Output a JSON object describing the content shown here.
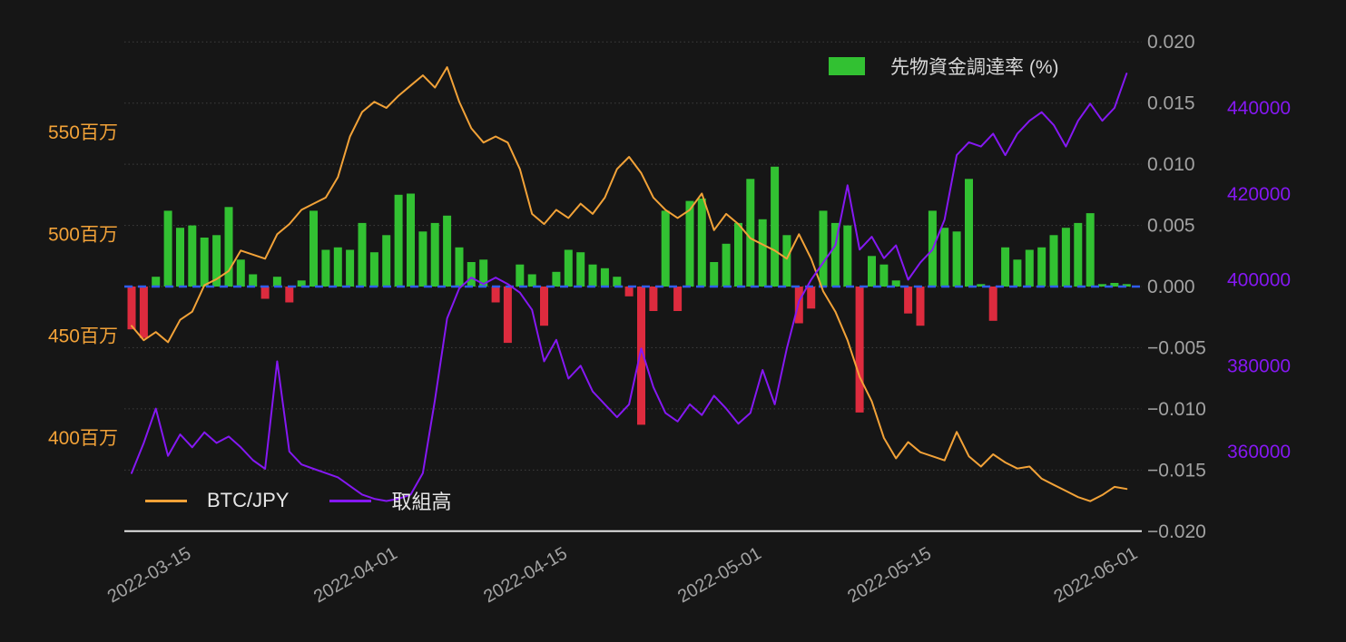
{
  "page": {
    "background": "#161616"
  },
  "chart_data": {
    "type": "mixed",
    "title": "",
    "x": [
      "2022-03-10",
      "2022-03-11",
      "2022-03-12",
      "2022-03-13",
      "2022-03-14",
      "2022-03-15",
      "2022-03-16",
      "2022-03-17",
      "2022-03-18",
      "2022-03-19",
      "2022-03-20",
      "2022-03-21",
      "2022-03-22",
      "2022-03-23",
      "2022-03-24",
      "2022-03-25",
      "2022-03-26",
      "2022-03-27",
      "2022-03-28",
      "2022-03-29",
      "2022-03-30",
      "2022-03-31",
      "2022-04-01",
      "2022-04-02",
      "2022-04-03",
      "2022-04-04",
      "2022-04-05",
      "2022-04-06",
      "2022-04-07",
      "2022-04-08",
      "2022-04-09",
      "2022-04-10",
      "2022-04-11",
      "2022-04-12",
      "2022-04-13",
      "2022-04-14",
      "2022-04-15",
      "2022-04-16",
      "2022-04-17",
      "2022-04-18",
      "2022-04-19",
      "2022-04-20",
      "2022-04-21",
      "2022-04-22",
      "2022-04-23",
      "2022-04-24",
      "2022-04-25",
      "2022-04-26",
      "2022-04-27",
      "2022-04-28",
      "2022-04-29",
      "2022-04-30",
      "2022-05-01",
      "2022-05-02",
      "2022-05-03",
      "2022-05-04",
      "2022-05-05",
      "2022-05-06",
      "2022-05-07",
      "2022-05-08",
      "2022-05-09",
      "2022-05-10",
      "2022-05-11",
      "2022-05-12",
      "2022-05-13",
      "2022-05-14",
      "2022-05-15",
      "2022-05-16",
      "2022-05-17",
      "2022-05-18",
      "2022-05-19",
      "2022-05-20",
      "2022-05-21",
      "2022-05-22",
      "2022-05-23",
      "2022-05-24",
      "2022-05-25",
      "2022-05-26",
      "2022-05-27",
      "2022-05-28",
      "2022-05-29",
      "2022-05-30",
      "2022-05-31"
    ],
    "series": [
      {
        "name": "先物資金調達率 (%)",
        "type": "bar",
        "yaxis": "funding",
        "color_positive": "#32c132",
        "color_negative": "#dd2b3e",
        "values": [
          -0.0035,
          -0.0042,
          0.0008,
          0.0062,
          0.0048,
          0.005,
          0.004,
          0.0042,
          0.0065,
          0.0022,
          0.001,
          -0.001,
          0.0008,
          -0.0013,
          0.0005,
          0.0062,
          0.003,
          0.0032,
          0.003,
          0.0052,
          0.0028,
          0.0042,
          0.0075,
          0.0076,
          0.0045,
          0.0052,
          0.0058,
          0.0032,
          0.002,
          0.0022,
          -0.0013,
          -0.0046,
          0.0018,
          0.001,
          -0.0032,
          0.0012,
          0.003,
          0.0028,
          0.0018,
          0.0015,
          0.0008,
          -0.0008,
          -0.0113,
          -0.002,
          0.0062,
          -0.002,
          0.007,
          0.0072,
          0.002,
          0.0035,
          0.0052,
          0.0088,
          0.0055,
          0.0098,
          0.0042,
          -0.003,
          -0.0018,
          0.0062,
          0.0052,
          0.005,
          -0.0103,
          0.0025,
          0.0018,
          0.0005,
          -0.0022,
          -0.0032,
          0.0062,
          0.0048,
          0.0045,
          0.0088,
          0.0002,
          -0.0028,
          0.0032,
          0.0022,
          0.003,
          0.0032,
          0.0042,
          0.0048,
          0.0052,
          0.006,
          0.0002,
          0.0003,
          0.0002
        ]
      },
      {
        "name": "BTC/JPY",
        "type": "line",
        "yaxis": "price",
        "color": "#f2a238",
        "values": [
          455,
          448,
          452,
          447,
          458,
          462,
          475,
          478,
          482,
          492,
          490,
          488,
          500,
          505,
          512,
          515,
          518,
          528,
          548,
          560,
          565,
          562,
          568,
          573,
          578,
          572,
          582,
          565,
          552,
          545,
          548,
          545,
          532,
          510,
          505,
          512,
          508,
          515,
          510,
          518,
          532,
          538,
          530,
          518,
          512,
          508,
          512,
          520,
          502,
          510,
          505,
          498,
          495,
          492,
          488,
          500,
          488,
          472,
          462,
          448,
          430,
          418,
          400,
          390,
          398,
          393,
          391,
          389,
          403,
          391,
          386,
          392,
          388,
          385,
          386,
          380,
          377,
          374,
          371,
          369,
          372,
          376,
          375
        ]
      },
      {
        "name": "取組高",
        "type": "line",
        "yaxis": "oi",
        "color": "#8518f2",
        "values": [
          355000,
          362000,
          370000,
          359000,
          364000,
          361000,
          364500,
          362000,
          363500,
          361000,
          358000,
          356000,
          381000,
          360000,
          357000,
          356000,
          355000,
          354000,
          352000,
          350000,
          349000,
          348500,
          349000,
          350000,
          355000,
          372000,
          391000,
          398000,
          400500,
          399000,
          400500,
          399000,
          397000,
          393000,
          381000,
          386000,
          377000,
          380000,
          374000,
          371000,
          368000,
          371000,
          384000,
          375000,
          369000,
          367000,
          371000,
          368500,
          373000,
          370000,
          366500,
          369000,
          379000,
          371000,
          384000,
          395000,
          400000,
          404000,
          408000,
          422000,
          407000,
          410000,
          405000,
          408000,
          400000,
          404000,
          407000,
          414000,
          429000,
          432000,
          431000,
          434000,
          429000,
          434000,
          437000,
          439000,
          436000,
          431000,
          437000,
          441000,
          437000,
          440000,
          448000
        ]
      }
    ],
    "axes": {
      "x": {
        "ticks": [
          {
            "label": "2022-03-15",
            "day_index": 5
          },
          {
            "label": "2022-04-01",
            "day_index": 22
          },
          {
            "label": "2022-04-15",
            "day_index": 36
          },
          {
            "label": "2022-05-01",
            "day_index": 52
          },
          {
            "label": "2022-05-15",
            "day_index": 66
          },
          {
            "label": "2022-06-01",
            "day_index": 83
          }
        ],
        "color": "#a3a3a3"
      },
      "price": {
        "side": "left",
        "color": "#f2a238",
        "ticks": [
          {
            "value": 550,
            "label": "550百万"
          },
          {
            "value": 500,
            "label": "500百万"
          },
          {
            "value": 450,
            "label": "450百万"
          },
          {
            "value": 400,
            "label": "400百万"
          }
        ]
      },
      "funding": {
        "side": "right",
        "color": "#a3a3a3",
        "unit": "%",
        "range": [
          -0.02,
          0.02
        ],
        "ticks": [
          0.02,
          0.015,
          0.01,
          0.005,
          0.0,
          -0.005,
          -0.01,
          -0.015,
          -0.02
        ]
      },
      "oi": {
        "side": "right-outer",
        "color": "#8518f2",
        "ticks": [
          440000,
          420000,
          400000,
          380000,
          360000
        ]
      }
    },
    "zero_line": {
      "value": 0,
      "color": "#2f5cf2",
      "dash": true
    },
    "grid": {
      "show": true,
      "color": "#3f3f3f",
      "style": "dot"
    },
    "axis_line_color": "#e3e3e3",
    "legend_top": {
      "label": "先物資金調達率 (%)",
      "swatch_color": "#32c132"
    },
    "legend_bottom": [
      {
        "label": "BTC/JPY",
        "color": "#f2a238"
      },
      {
        "label": "取組高",
        "color": "#8518f2"
      }
    ]
  }
}
